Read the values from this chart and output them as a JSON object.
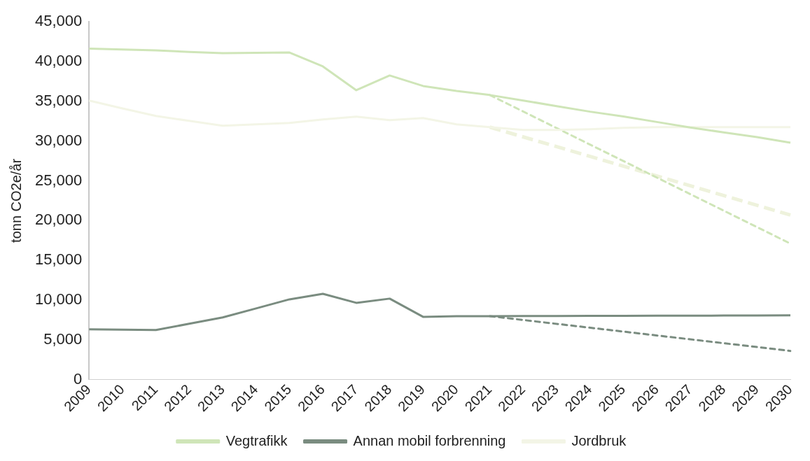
{
  "chart_data": {
    "type": "line",
    "ylabel": "tonn CO2e/år",
    "categories": [
      "2009",
      "2010",
      "2011",
      "2012",
      "2013",
      "2014",
      "2015",
      "2016",
      "2017",
      "2018",
      "2019",
      "2020",
      "2021",
      "2022",
      "2023",
      "2024",
      "2025",
      "2026",
      "2027",
      "2028",
      "2029",
      "2030"
    ],
    "ylim": [
      0,
      45000
    ],
    "yticks": [
      {
        "value": 0,
        "label": "0"
      },
      {
        "value": 5000,
        "label": "5,000"
      },
      {
        "value": 10000,
        "label": "10,000"
      },
      {
        "value": 15000,
        "label": "15,000"
      },
      {
        "value": 20000,
        "label": "20,000"
      },
      {
        "value": 25000,
        "label": "25,000"
      },
      {
        "value": 30000,
        "label": "30,000"
      },
      {
        "value": 35000,
        "label": "35,000"
      },
      {
        "value": 40000,
        "label": "40,000"
      },
      {
        "value": 45000,
        "label": "45,000"
      }
    ],
    "grid": false,
    "legend": "bottom",
    "marker": "none",
    "series": [
      {
        "name": "Vegtrafikk",
        "color": "#cfe5b8",
        "line_style": "solid",
        "values": [
          41640,
          41520,
          41400,
          41220,
          41050,
          41100,
          41140,
          39390,
          36400,
          38250,
          36930,
          36300,
          35790,
          35100,
          34400,
          33700,
          33100,
          32400,
          31700,
          31100,
          30500,
          29800
        ]
      },
      {
        "name": "Annan mobil forbrenning",
        "color": "#7a8c80",
        "line_style": "solid",
        "values": [
          6320,
          6270,
          6230,
          7020,
          7810,
          8950,
          10090,
          10790,
          9650,
          10180,
          7890,
          7980,
          7980,
          7990,
          8000,
          8010,
          8020,
          8030,
          8040,
          8050,
          8060,
          8070
        ]
      },
      {
        "name": "Jordbruk",
        "color": "#f3f5e6",
        "line_style": "solid",
        "values": [
          35090,
          34100,
          33160,
          32540,
          31930,
          32100,
          32280,
          32720,
          33070,
          32630,
          32890,
          32100,
          31750,
          31400,
          31400,
          31490,
          31670,
          31750,
          31750,
          31750,
          31750,
          31750
        ]
      },
      {
        "color": "#cfe5b8",
        "line_style": "dotted",
        "values": [
          null,
          null,
          null,
          null,
          null,
          null,
          null,
          null,
          null,
          null,
          null,
          null,
          35790,
          null,
          null,
          null,
          null,
          null,
          null,
          null,
          null,
          17100
        ]
      },
      {
        "color": "#7a8c80",
        "line_style": "dotted",
        "values": [
          null,
          null,
          null,
          null,
          null,
          null,
          null,
          null,
          null,
          null,
          null,
          null,
          7980,
          null,
          null,
          null,
          null,
          null,
          null,
          null,
          null,
          3600
        ]
      },
      {
        "color": "#eef2dc",
        "line_style": "dashed",
        "values": [
          null,
          null,
          null,
          null,
          null,
          null,
          null,
          null,
          null,
          null,
          null,
          null,
          31750,
          null,
          null,
          null,
          null,
          null,
          null,
          null,
          null,
          20700
        ]
      }
    ]
  }
}
